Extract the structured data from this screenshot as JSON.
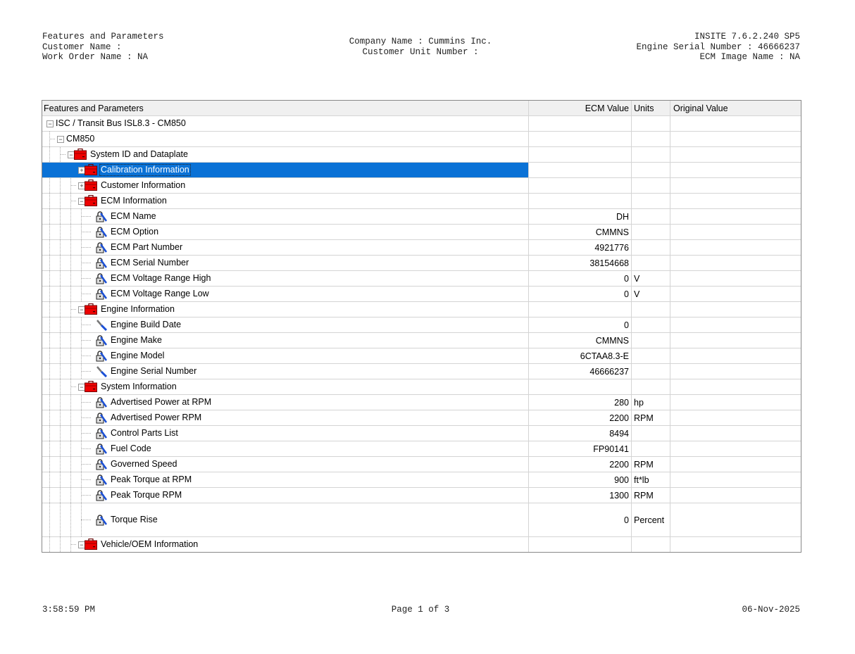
{
  "header": {
    "left": [
      "Features and Parameters",
      "Customer Name :",
      "Work Order Name : NA"
    ],
    "center": [
      "Company Name : Cummins Inc.",
      "Customer Unit Number :"
    ],
    "right": [
      "INSITE 7.6.2.240 SP5",
      "Engine Serial Number : 46666237",
      "ECM Image Name : NA"
    ]
  },
  "footer": {
    "time": "3:58:59 PM",
    "page": "Page 1 of 3",
    "date": "06-Nov-2025"
  },
  "table": {
    "columns": [
      "Features and Parameters",
      "ECM Value",
      "Units",
      "Original Value"
    ],
    "selected_color": "#0a72d6",
    "rows": [
      {
        "level": 0,
        "type": "group",
        "expander": "minus",
        "label": "ISC / Transit Bus ISL8.3 - CM850",
        "value": "",
        "units": ""
      },
      {
        "level": 1,
        "type": "group",
        "expander": "minus",
        "label": "CM850",
        "value": "",
        "units": ""
      },
      {
        "level": 2,
        "type": "folder",
        "expander": "minus",
        "label": "System ID and Dataplate",
        "value": "",
        "units": ""
      },
      {
        "level": 3,
        "type": "folder",
        "expander": "plus",
        "label": "Calibration Information",
        "value": "",
        "units": "",
        "selected": true
      },
      {
        "level": 3,
        "type": "folder",
        "expander": "plus",
        "label": "Customer Information",
        "value": "",
        "units": ""
      },
      {
        "level": 3,
        "type": "folder",
        "expander": "minus",
        "label": "ECM Information",
        "value": "",
        "units": ""
      },
      {
        "level": 4,
        "type": "locked",
        "label": "ECM Name",
        "value": "DH",
        "units": ""
      },
      {
        "level": 4,
        "type": "locked",
        "label": "ECM Option",
        "value": "CMMNS",
        "units": ""
      },
      {
        "level": 4,
        "type": "locked",
        "label": "ECM Part Number",
        "value": "4921776",
        "units": ""
      },
      {
        "level": 4,
        "type": "locked",
        "label": "ECM Serial Number",
        "value": "38154668",
        "units": ""
      },
      {
        "level": 4,
        "type": "locked",
        "label": "ECM Voltage Range High",
        "value": "0",
        "units": "V"
      },
      {
        "level": 4,
        "type": "locked",
        "label": "ECM Voltage Range Low",
        "value": "0",
        "units": "V"
      },
      {
        "level": 3,
        "type": "folder",
        "expander": "minus",
        "label": "Engine Information",
        "value": "",
        "units": ""
      },
      {
        "level": 4,
        "type": "editable",
        "label": "Engine Build Date",
        "value": "0",
        "units": ""
      },
      {
        "level": 4,
        "type": "locked",
        "label": "Engine Make",
        "value": "CMMNS",
        "units": ""
      },
      {
        "level": 4,
        "type": "locked",
        "label": "Engine Model",
        "value": "6CTAA8.3-E",
        "units": ""
      },
      {
        "level": 4,
        "type": "editable",
        "label": "Engine Serial Number",
        "value": "46666237",
        "units": ""
      },
      {
        "level": 3,
        "type": "folder",
        "expander": "minus",
        "label": "System Information",
        "value": "",
        "units": ""
      },
      {
        "level": 4,
        "type": "locked",
        "label": "Advertised Power at RPM",
        "value": "280",
        "units": "hp"
      },
      {
        "level": 4,
        "type": "locked",
        "label": "Advertised Power RPM",
        "value": "2200",
        "units": "RPM"
      },
      {
        "level": 4,
        "type": "locked",
        "label": "Control Parts List",
        "value": "8494",
        "units": ""
      },
      {
        "level": 4,
        "type": "locked",
        "label": "Fuel Code",
        "value": "FP90141",
        "units": ""
      },
      {
        "level": 4,
        "type": "locked",
        "label": "Governed Speed",
        "value": "2200",
        "units": "RPM"
      },
      {
        "level": 4,
        "type": "locked",
        "label": "Peak Torque at RPM",
        "value": "900",
        "units": "ft*lb"
      },
      {
        "level": 4,
        "type": "locked",
        "label": "Peak Torque RPM",
        "value": "1300",
        "units": "RPM"
      },
      {
        "level": 4,
        "type": "locked",
        "label": "Torque Rise",
        "value": "0",
        "units": "Percent",
        "tall": true
      },
      {
        "level": 3,
        "type": "folder",
        "expander": "minus",
        "label": "Vehicle/OEM Information",
        "value": "",
        "units": ""
      }
    ]
  }
}
